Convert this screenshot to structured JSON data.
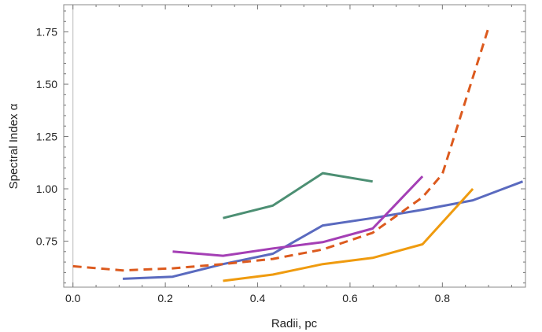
{
  "chart_data": {
    "type": "line",
    "title": "",
    "xlabel": "Radii, pc",
    "ylabel": "Spectral Index α",
    "xlim": [
      -0.02,
      0.98
    ],
    "ylim": [
      0.53,
      1.88
    ],
    "x_ticks": [
      {
        "value": 0.0,
        "label": "0.0"
      },
      {
        "value": 0.2,
        "label": "0.2"
      },
      {
        "value": 0.4,
        "label": "0.4"
      },
      {
        "value": 0.6,
        "label": "0.6"
      },
      {
        "value": 0.8,
        "label": "0.8"
      }
    ],
    "y_ticks": [
      {
        "value": 0.75,
        "label": "0.75"
      },
      {
        "value": 1.0,
        "label": "1.00"
      },
      {
        "value": 1.25,
        "label": "1.25"
      },
      {
        "value": 1.5,
        "label": "1.50"
      },
      {
        "value": 1.75,
        "label": "1.75"
      }
    ],
    "grid": false,
    "series": [
      {
        "color": "#4c8f73",
        "dash": "solid",
        "x": [
          0.325,
          0.433,
          0.541,
          0.649
        ],
        "y": [
          0.86,
          0.92,
          1.075,
          1.035
        ]
      },
      {
        "color": "#5a6abf",
        "dash": "solid",
        "x": [
          0.108,
          0.216,
          0.325,
          0.433,
          0.541,
          0.649,
          0.757,
          0.866,
          0.974
        ],
        "y": [
          0.57,
          0.58,
          0.64,
          0.69,
          0.825,
          0.86,
          0.9,
          0.945,
          1.035
        ]
      },
      {
        "color": "#a43fb5",
        "dash": "solid",
        "x": [
          0.216,
          0.325,
          0.433,
          0.541,
          0.649,
          0.757
        ],
        "y": [
          0.7,
          0.68,
          0.715,
          0.745,
          0.81,
          1.06
        ]
      },
      {
        "color": "#dc5a1e",
        "dash": "dashed",
        "x": [
          0.0,
          0.108,
          0.216,
          0.325,
          0.433,
          0.541,
          0.649,
          0.757,
          0.8,
          0.9
        ],
        "y": [
          0.63,
          0.61,
          0.62,
          0.64,
          0.665,
          0.71,
          0.79,
          0.96,
          1.07,
          1.77
        ]
      },
      {
        "color": "#ef9b0f",
        "dash": "solid",
        "x": [
          0.325,
          0.433,
          0.541,
          0.649,
          0.757,
          0.866
        ],
        "y": [
          0.56,
          0.59,
          0.64,
          0.67,
          0.735,
          1.0
        ]
      }
    ]
  }
}
